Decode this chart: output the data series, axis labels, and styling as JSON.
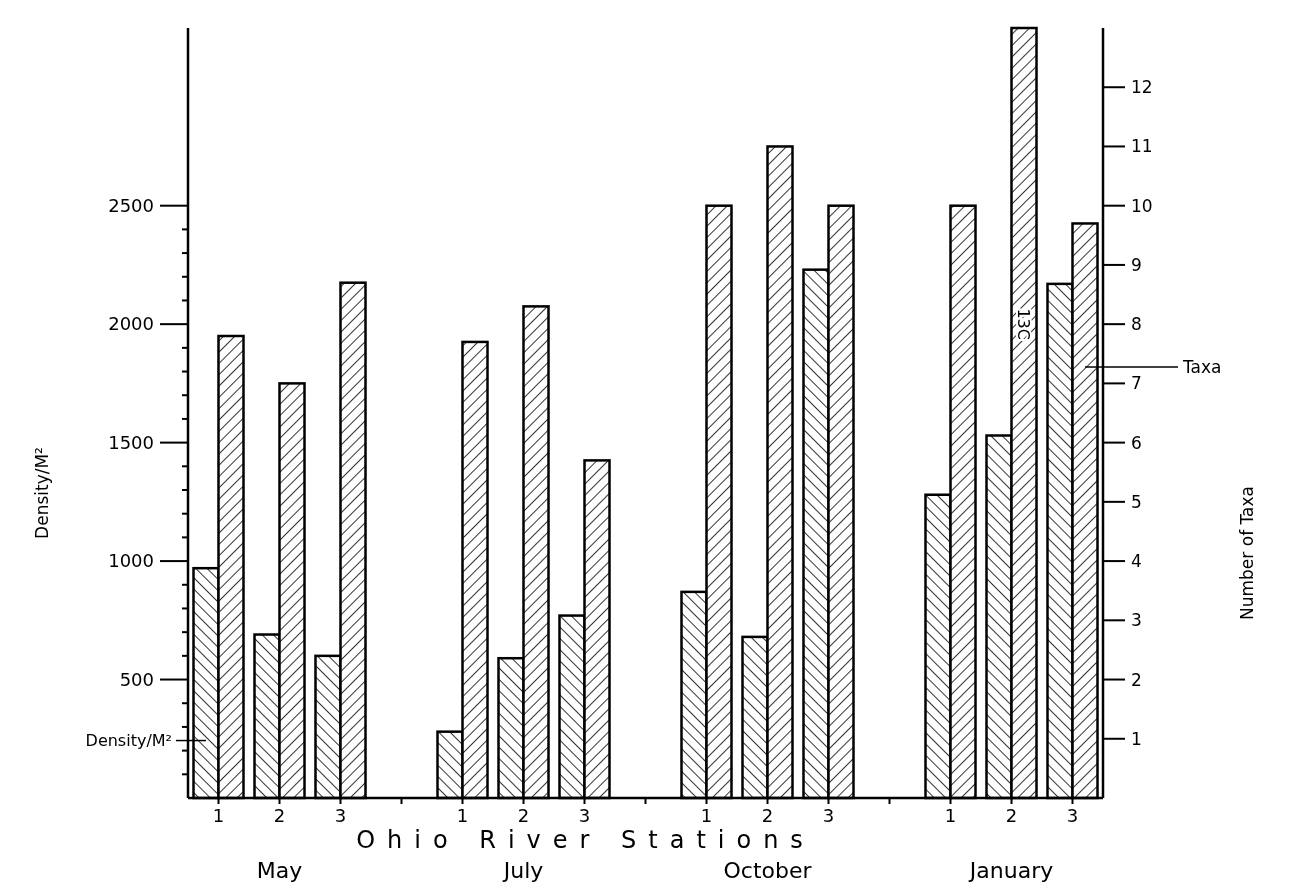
{
  "chart_data": {
    "type": "bar",
    "xlabel": "Ohio River Stations",
    "ylabel": "Density/M²",
    "y2label": "Number of Taxa",
    "categories": [
      "1",
      "2",
      "3",
      null,
      "1",
      "2",
      "3",
      null,
      "1",
      "2",
      "3",
      null,
      "1",
      "2",
      "3"
    ],
    "series": [
      {
        "name": "Density/M²",
        "color": "#000000",
        "values": [
          970,
          690,
          600,
          null,
          280,
          590,
          770,
          null,
          870,
          680,
          2230,
          null,
          1280,
          1530,
          2170
        ]
      },
      {
        "name": "Taxa",
        "color": "#000000",
        "axis": "y2",
        "values": [
          7.8,
          7.0,
          8.7,
          null,
          7.7,
          8.3,
          5.7,
          null,
          10,
          11,
          10,
          null,
          10,
          13,
          9.7
        ]
      }
    ],
    "ylim": [
      0,
      3250
    ],
    "yticks": [
      {
        "value": 100,
        "label": null
      },
      {
        "value": 200,
        "label": null
      },
      {
        "value": 300,
        "label": null
      },
      {
        "value": 400,
        "label": null
      },
      500,
      {
        "value": 600,
        "label": null
      },
      {
        "value": 700,
        "label": null
      },
      {
        "value": 800,
        "label": null
      },
      {
        "value": 900,
        "label": null
      },
      1000,
      {
        "value": 1100,
        "label": null
      },
      {
        "value": 1200,
        "label": null
      },
      {
        "value": 1300,
        "label": null
      },
      {
        "value": 1400,
        "label": null
      },
      1500,
      {
        "value": 1600,
        "label": null
      },
      {
        "value": 1700,
        "label": null
      },
      {
        "value": 1800,
        "label": null
      },
      {
        "value": 1900,
        "label": null
      },
      2000,
      {
        "value": 2100,
        "label": null
      },
      {
        "value": 2200,
        "label": null
      },
      {
        "value": 2300,
        "label": null
      },
      {
        "value": 2400,
        "label": null
      },
      2500
    ],
    "y2lim": [
      0,
      13
    ],
    "y2ticks": [
      1,
      2,
      3,
      4,
      5,
      6,
      7,
      8,
      9,
      10,
      11,
      12
    ],
    "annotations": [
      "May",
      "July",
      "October",
      "January",
      "13C"
    ],
    "legend": false
  }
}
